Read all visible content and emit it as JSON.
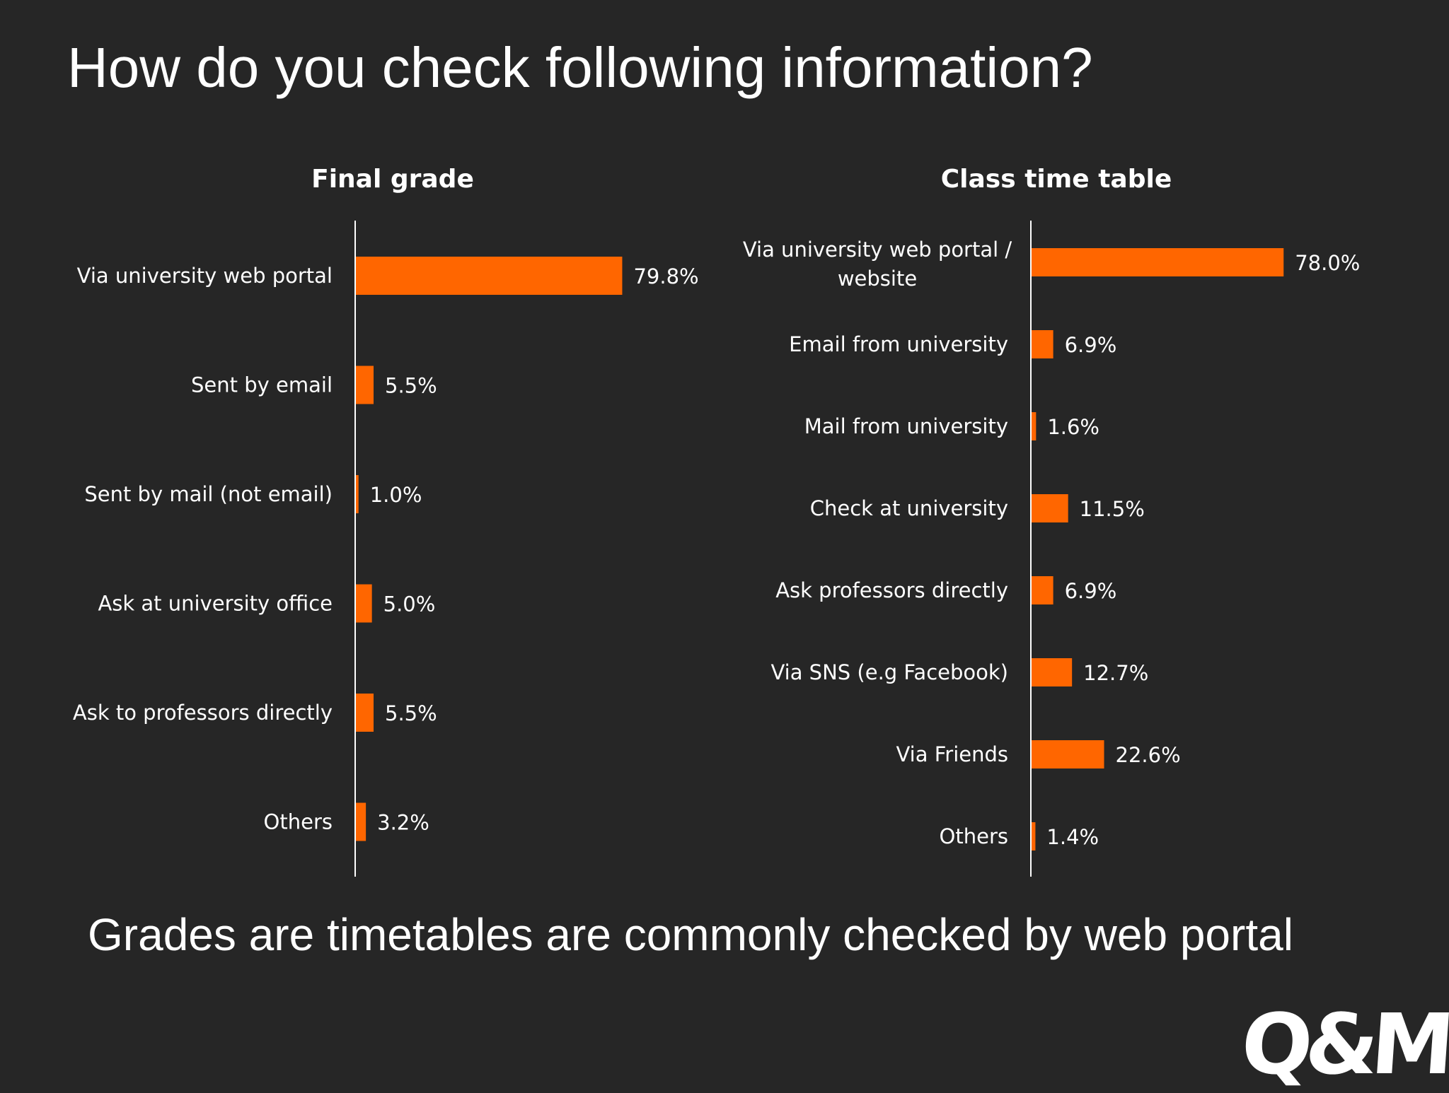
{
  "slide": {
    "title": "How do you check following information?",
    "message": "Grades are timetables are commonly checked by web portal",
    "logo_text": "Q&Me"
  },
  "colors": {
    "background": "#262626",
    "bar": "#FF6600",
    "text": "#FFFFFF",
    "axis": "#FFFFFF"
  },
  "chart_data": [
    {
      "type": "bar",
      "orientation": "horizontal",
      "title": "Final grade",
      "categories": [
        "Via university web portal",
        "Sent by email",
        "Sent by mail (not email)",
        "Ask at university office",
        "Ask to professors directly",
        "Others"
      ],
      "values": [
        79.8,
        5.5,
        1.0,
        5.0,
        5.5,
        3.2
      ],
      "value_labels": [
        "79.8%",
        "5.5%",
        "1.0%",
        "5.0%",
        "5.5%",
        "3.2%"
      ],
      "unit": "%",
      "xlim": [
        0,
        100
      ],
      "grid": false,
      "legend": "none"
    },
    {
      "type": "bar",
      "orientation": "horizontal",
      "title": "Class time table",
      "categories": [
        [
          "Via university web portal /",
          "website"
        ],
        "Email from university",
        "Mail from university",
        "Check at university",
        "Ask professors directly",
        "Via SNS (e.g Facebook)",
        "Via Friends",
        "Others"
      ],
      "values": [
        78.0,
        6.9,
        1.6,
        11.5,
        6.9,
        12.7,
        22.6,
        1.4
      ],
      "value_labels": [
        "78.0%",
        "6.9%",
        "1.6%",
        "11.5%",
        "6.9%",
        "12.7%",
        "22.6%",
        "1.4%"
      ],
      "unit": "%",
      "xlim": [
        0,
        100
      ],
      "grid": false,
      "legend": "none"
    }
  ]
}
